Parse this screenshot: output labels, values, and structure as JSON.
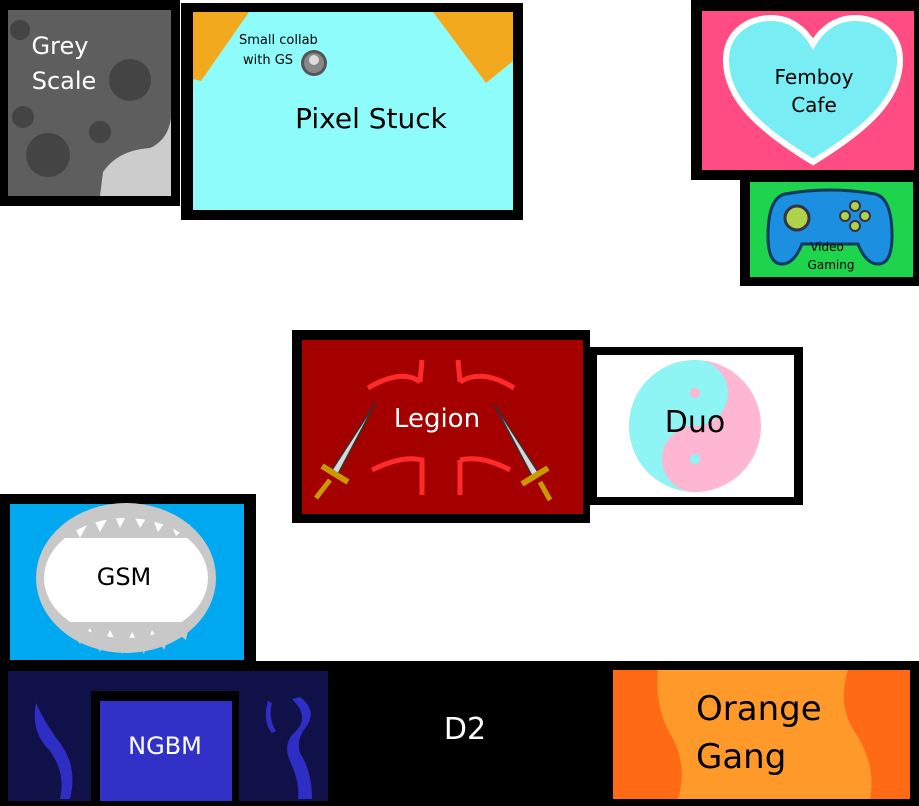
{
  "cards": {
    "grey_scale": {
      "line1": "Grey",
      "line2": "Scale"
    },
    "pixel_stuck": {
      "title": "Pixel Stuck",
      "note_line1": "Small collab",
      "note_line2": "with GS"
    },
    "femboy_cafe": {
      "line1": "Femboy",
      "line2": "Cafe"
    },
    "video_gaming": {
      "line1": "Video",
      "line2": "Gaming"
    },
    "legion": {
      "title": "Legion"
    },
    "duo": {
      "title": "Duo"
    },
    "gsm": {
      "title": "GSM"
    },
    "ngbm": {
      "title": "NGBM"
    },
    "d2": {
      "title": "D2"
    },
    "orange_gang": {
      "line1": "Orange",
      "line2": "Gang"
    }
  },
  "colors": {
    "grey_scale": "#5a5a5a",
    "pixel_stuck": "#8ffcfc",
    "femboy_cafe": "#ff4c82",
    "video_gaming": "#1ed44c",
    "legion": "#a40000",
    "duo": "#ffffff",
    "gsm": "#00a8f0",
    "ngbm": "#11114a",
    "d2": "#000000",
    "orange_gang": "#ff6a14"
  },
  "icons": [
    "moon-crater-icon",
    "moon-ball-icon",
    "heart-icon",
    "gamepad-icon",
    "sword-icon",
    "yin-yang-icon",
    "shark-jaw-icon",
    "tentacle-icon"
  ]
}
